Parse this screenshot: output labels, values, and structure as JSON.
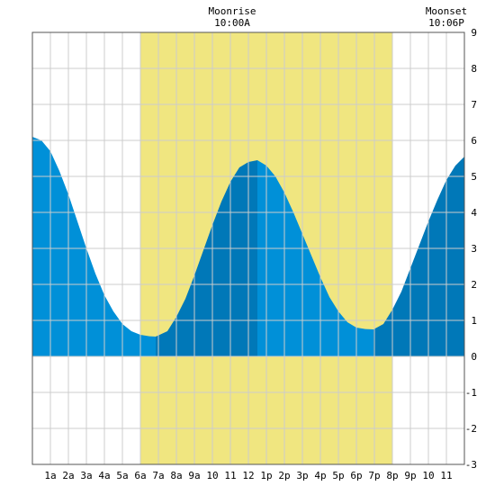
{
  "chart_data": {
    "type": "area",
    "xlim": [
      0,
      24
    ],
    "ylim": [
      -3,
      9
    ],
    "y_ticks": [
      "-3",
      "-2",
      "-1",
      "0",
      "1",
      "2",
      "3",
      "4",
      "5",
      "6",
      "7",
      "8",
      "9"
    ],
    "x_tick_labels": [
      "1a",
      "2a",
      "3a",
      "4a",
      "5a",
      "6a",
      "7a",
      "8a",
      "9a",
      "10",
      "11",
      "12",
      "1p",
      "2p",
      "3p",
      "4p",
      "5p",
      "6p",
      "7p",
      "8p",
      "9p",
      "10",
      "11"
    ],
    "grid": true,
    "daylight_band": {
      "start_hour": 6.0,
      "end_hour": 20.0
    },
    "tide_extremes": [
      {
        "hour": 0.0,
        "height": 6.1,
        "type": "high"
      },
      {
        "hour": 6.85,
        "height": 0.55,
        "type": "low"
      },
      {
        "hour": 12.5,
        "height": 5.45,
        "type": "high"
      },
      {
        "hour": 18.95,
        "height": 0.75,
        "type": "low"
      },
      {
        "hour": 24.0,
        "height": 5.55,
        "type": "high"
      }
    ],
    "tide_series_x": [
      0,
      0.5,
      1,
      1.5,
      2,
      2.5,
      3,
      3.5,
      4,
      4.5,
      5,
      5.5,
      6,
      6.5,
      6.85,
      7.5,
      8,
      8.5,
      9,
      9.5,
      10,
      10.5,
      11,
      11.5,
      12,
      12.5,
      13,
      13.5,
      14,
      14.5,
      15,
      15.5,
      16,
      16.5,
      17,
      17.5,
      18,
      18.5,
      18.95,
      19.5,
      20,
      20.5,
      21,
      21.5,
      22,
      22.5,
      23,
      23.5,
      24
    ],
    "tide_series_y": [
      6.1,
      6.0,
      5.7,
      5.15,
      4.5,
      3.75,
      3.0,
      2.3,
      1.7,
      1.25,
      0.9,
      0.7,
      0.6,
      0.56,
      0.55,
      0.7,
      1.1,
      1.6,
      2.25,
      2.95,
      3.65,
      4.3,
      4.85,
      5.25,
      5.4,
      5.45,
      5.3,
      5.0,
      4.55,
      4.0,
      3.4,
      2.8,
      2.2,
      1.65,
      1.25,
      0.95,
      0.8,
      0.76,
      0.75,
      0.9,
      1.3,
      1.8,
      2.45,
      3.1,
      3.75,
      4.35,
      4.9,
      5.3,
      5.55
    ],
    "colors": {
      "daylight": "#f0e680",
      "water_light": "#0090d8",
      "water_dark": "#0078b8",
      "grid": "#cccccc",
      "plot_border": "#555555"
    }
  },
  "moonrise": {
    "label": "Moonrise",
    "time": "10:00A"
  },
  "moonset": {
    "label": "Moonset",
    "time": "10:06P"
  }
}
